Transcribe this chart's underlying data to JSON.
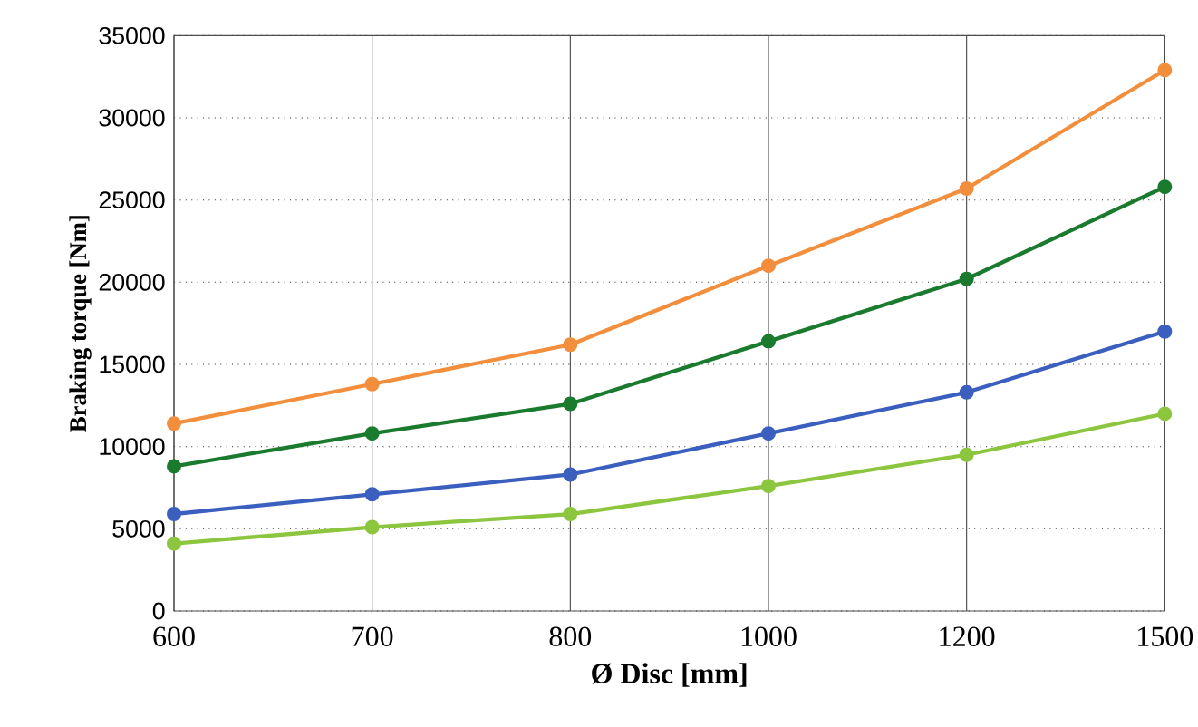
{
  "chart_data": {
    "type": "line",
    "xlabel": "Ø Disc [mm]",
    "ylabel": "Braking torque [Nm]",
    "categories": [
      "600",
      "700",
      "800",
      "1000",
      "1200",
      "1500"
    ],
    "series": [
      {
        "color": "#f28e3c",
        "values": [
          11400,
          13800,
          16200,
          21000,
          25700,
          32900
        ]
      },
      {
        "color": "#1a7a2e",
        "values": [
          8800,
          10800,
          12600,
          16400,
          20200,
          25800
        ]
      },
      {
        "color": "#3b5fbf",
        "values": [
          5900,
          7100,
          8300,
          10800,
          13300,
          17000
        ]
      },
      {
        "color": "#8cc63f",
        "values": [
          4100,
          5100,
          5900,
          7600,
          9500,
          12000
        ]
      }
    ],
    "ylim": [
      0,
      35000
    ],
    "yticks": [
      0,
      5000,
      10000,
      15000,
      20000,
      25000,
      30000,
      35000
    ],
    "grid": true,
    "marker": "circle",
    "line_style": "solid"
  }
}
